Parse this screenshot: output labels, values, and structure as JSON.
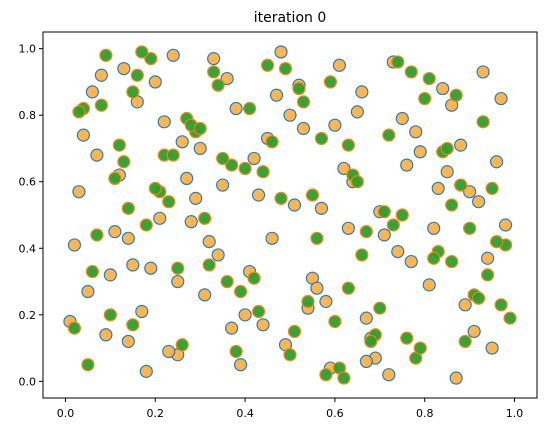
{
  "chart_data": {
    "type": "scatter",
    "title": "iteration 0",
    "xlabel": "",
    "ylabel": "",
    "xlim": [
      -0.05,
      1.05
    ],
    "ylim": [
      -0.05,
      1.05
    ],
    "xticks": [
      0.0,
      0.2,
      0.4,
      0.6,
      0.8,
      1.0
    ],
    "yticks": [
      0.0,
      0.2,
      0.4,
      0.6,
      0.8,
      1.0
    ],
    "xtick_labels": [
      "0.0",
      "0.2",
      "0.4",
      "0.6",
      "0.8",
      "1.0"
    ],
    "ytick_labels": [
      "0.0",
      "0.2",
      "0.4",
      "0.6",
      "0.8",
      "1.0"
    ],
    "grid": false,
    "legend": false,
    "colors": {
      "orange_fill": "#ffb347",
      "orange_edge": "#ff7f0e",
      "green_fill": "#2ca02c",
      "blue_edge": "#1f77b4"
    },
    "series": [
      {
        "x": [
          0.08,
          0.91,
          0.03,
          0.45,
          0.55,
          0.16,
          0.25,
          0.96,
          0.71,
          0.33,
          0.67,
          0.12,
          0.84,
          0.05,
          0.51,
          0.39,
          0.22,
          0.77,
          0.61,
          0.28,
          0.88,
          0.14,
          0.47,
          0.58,
          0.35,
          0.72,
          0.02,
          0.93,
          0.19,
          0.42,
          0.65,
          0.81,
          0.09,
          0.53,
          0.29,
          0.74,
          0.36,
          0.98,
          0.17,
          0.62,
          0.44,
          0.86,
          0.24,
          0.69,
          0.11,
          0.57,
          0.31,
          0.79,
          0.04,
          0.49,
          0.94,
          0.27,
          0.66,
          0.13,
          0.83,
          0.41,
          0.59,
          0.21,
          0.75,
          0.37,
          0.07,
          0.89,
          0.52,
          0.32,
          0.68,
          0.15,
          0.97,
          0.43,
          0.26,
          0.73,
          0.56,
          0.18,
          0.85,
          0.38,
          0.63,
          0.01,
          0.92,
          0.48,
          0.23,
          0.78,
          0.34,
          0.64,
          0.1,
          0.87,
          0.54,
          0.3,
          0.7,
          0.46,
          0.2,
          0.95,
          0.6,
          0.06,
          0.82,
          0.4,
          0.76,
          0.25,
          0.5,
          0.9,
          0.14,
          0.67
        ],
        "y": [
          0.92,
          0.15,
          0.57,
          0.73,
          0.31,
          0.84,
          0.08,
          0.66,
          0.44,
          0.97,
          0.19,
          0.62,
          0.88,
          0.27,
          0.53,
          0.05,
          0.78,
          0.36,
          0.95,
          0.48,
          0.71,
          0.12,
          0.86,
          0.24,
          0.59,
          0.02,
          0.41,
          0.93,
          0.34,
          0.67,
          0.81,
          0.29,
          0.14,
          0.76,
          0.55,
          0.39,
          0.91,
          0.47,
          0.21,
          0.64,
          0.17,
          0.83,
          0.98,
          0.07,
          0.45,
          0.52,
          0.26,
          0.69,
          0.74,
          0.11,
          0.37,
          0.61,
          0.87,
          0.94,
          0.58,
          0.33,
          0.04,
          0.49,
          0.79,
          0.16,
          0.68,
          0.23,
          0.89,
          0.42,
          0.13,
          0.35,
          0.85,
          0.56,
          0.72,
          0.96,
          0.28,
          0.03,
          0.63,
          0.82,
          0.46,
          0.18,
          0.54,
          0.99,
          0.09,
          0.75,
          0.38,
          0.6,
          0.32,
          0.01,
          0.22,
          0.7,
          0.51,
          0.43,
          0.9,
          0.1,
          0.77,
          0.87,
          0.46,
          0.2,
          0.65,
          0.3,
          0.8,
          0.57,
          0.43,
          0.06
        ]
      },
      {
        "x": [
          0.06,
          0.52,
          0.89,
          0.37,
          0.18,
          0.74,
          0.43,
          0.95,
          0.27,
          0.61,
          0.12,
          0.83,
          0.48,
          0.04,
          0.69,
          0.33,
          0.91,
          0.22,
          0.56,
          0.78,
          0.15,
          0.42,
          0.64,
          0.99,
          0.29,
          0.71,
          0.09,
          0.86,
          0.38,
          0.53,
          0.21,
          0.97,
          0.46,
          0.67,
          0.02,
          0.81,
          0.35,
          0.58,
          0.14,
          0.93,
          0.25,
          0.76,
          0.49,
          0.11,
          0.63,
          0.87,
          0.31,
          0.72,
          0.05,
          0.44,
          0.98,
          0.19,
          0.6,
          0.84,
          0.36,
          0.08,
          0.55,
          0.79,
          0.28,
          0.66,
          0.16,
          0.92,
          0.4,
          0.73,
          0.03,
          0.51,
          0.85,
          0.23,
          0.62,
          0.34,
          0.96,
          0.13,
          0.7,
          0.45,
          0.88,
          0.26,
          0.57,
          0.07,
          0.8,
          0.39,
          0.65,
          0.17,
          0.94,
          0.5,
          0.3,
          0.75,
          0.1,
          0.59,
          0.82,
          0.24,
          0.68,
          0.41,
          0.9,
          0.2,
          0.54,
          0.77,
          0.32,
          0.63,
          0.15,
          0.86
        ],
        "y": [
          0.33,
          0.88,
          0.12,
          0.65,
          0.47,
          0.96,
          0.21,
          0.58,
          0.79,
          0.04,
          0.71,
          0.39,
          0.55,
          0.82,
          0.14,
          0.93,
          0.26,
          0.68,
          0.43,
          0.07,
          0.87,
          0.31,
          0.62,
          0.19,
          0.75,
          0.51,
          0.98,
          0.36,
          0.09,
          0.84,
          0.57,
          0.23,
          0.72,
          0.45,
          0.16,
          0.91,
          0.67,
          0.02,
          0.52,
          0.78,
          0.34,
          0.13,
          0.94,
          0.61,
          0.28,
          0.86,
          0.49,
          0.74,
          0.05,
          0.63,
          0.41,
          0.97,
          0.18,
          0.69,
          0.3,
          0.83,
          0.56,
          0.1,
          0.77,
          0.38,
          0.92,
          0.25,
          0.64,
          0.47,
          0.81,
          0.15,
          0.7,
          0.54,
          0.01,
          0.89,
          0.42,
          0.66,
          0.22,
          0.95,
          0.59,
          0.11,
          0.73,
          0.44,
          0.85,
          0.27,
          0.6,
          0.99,
          0.32,
          0.08,
          0.76,
          0.5,
          0.2,
          0.9,
          0.37,
          0.68,
          0.12,
          0.82,
          0.46,
          0.58,
          0.24,
          0.93,
          0.35,
          0.71,
          0.17,
          0.53
        ]
      }
    ]
  }
}
